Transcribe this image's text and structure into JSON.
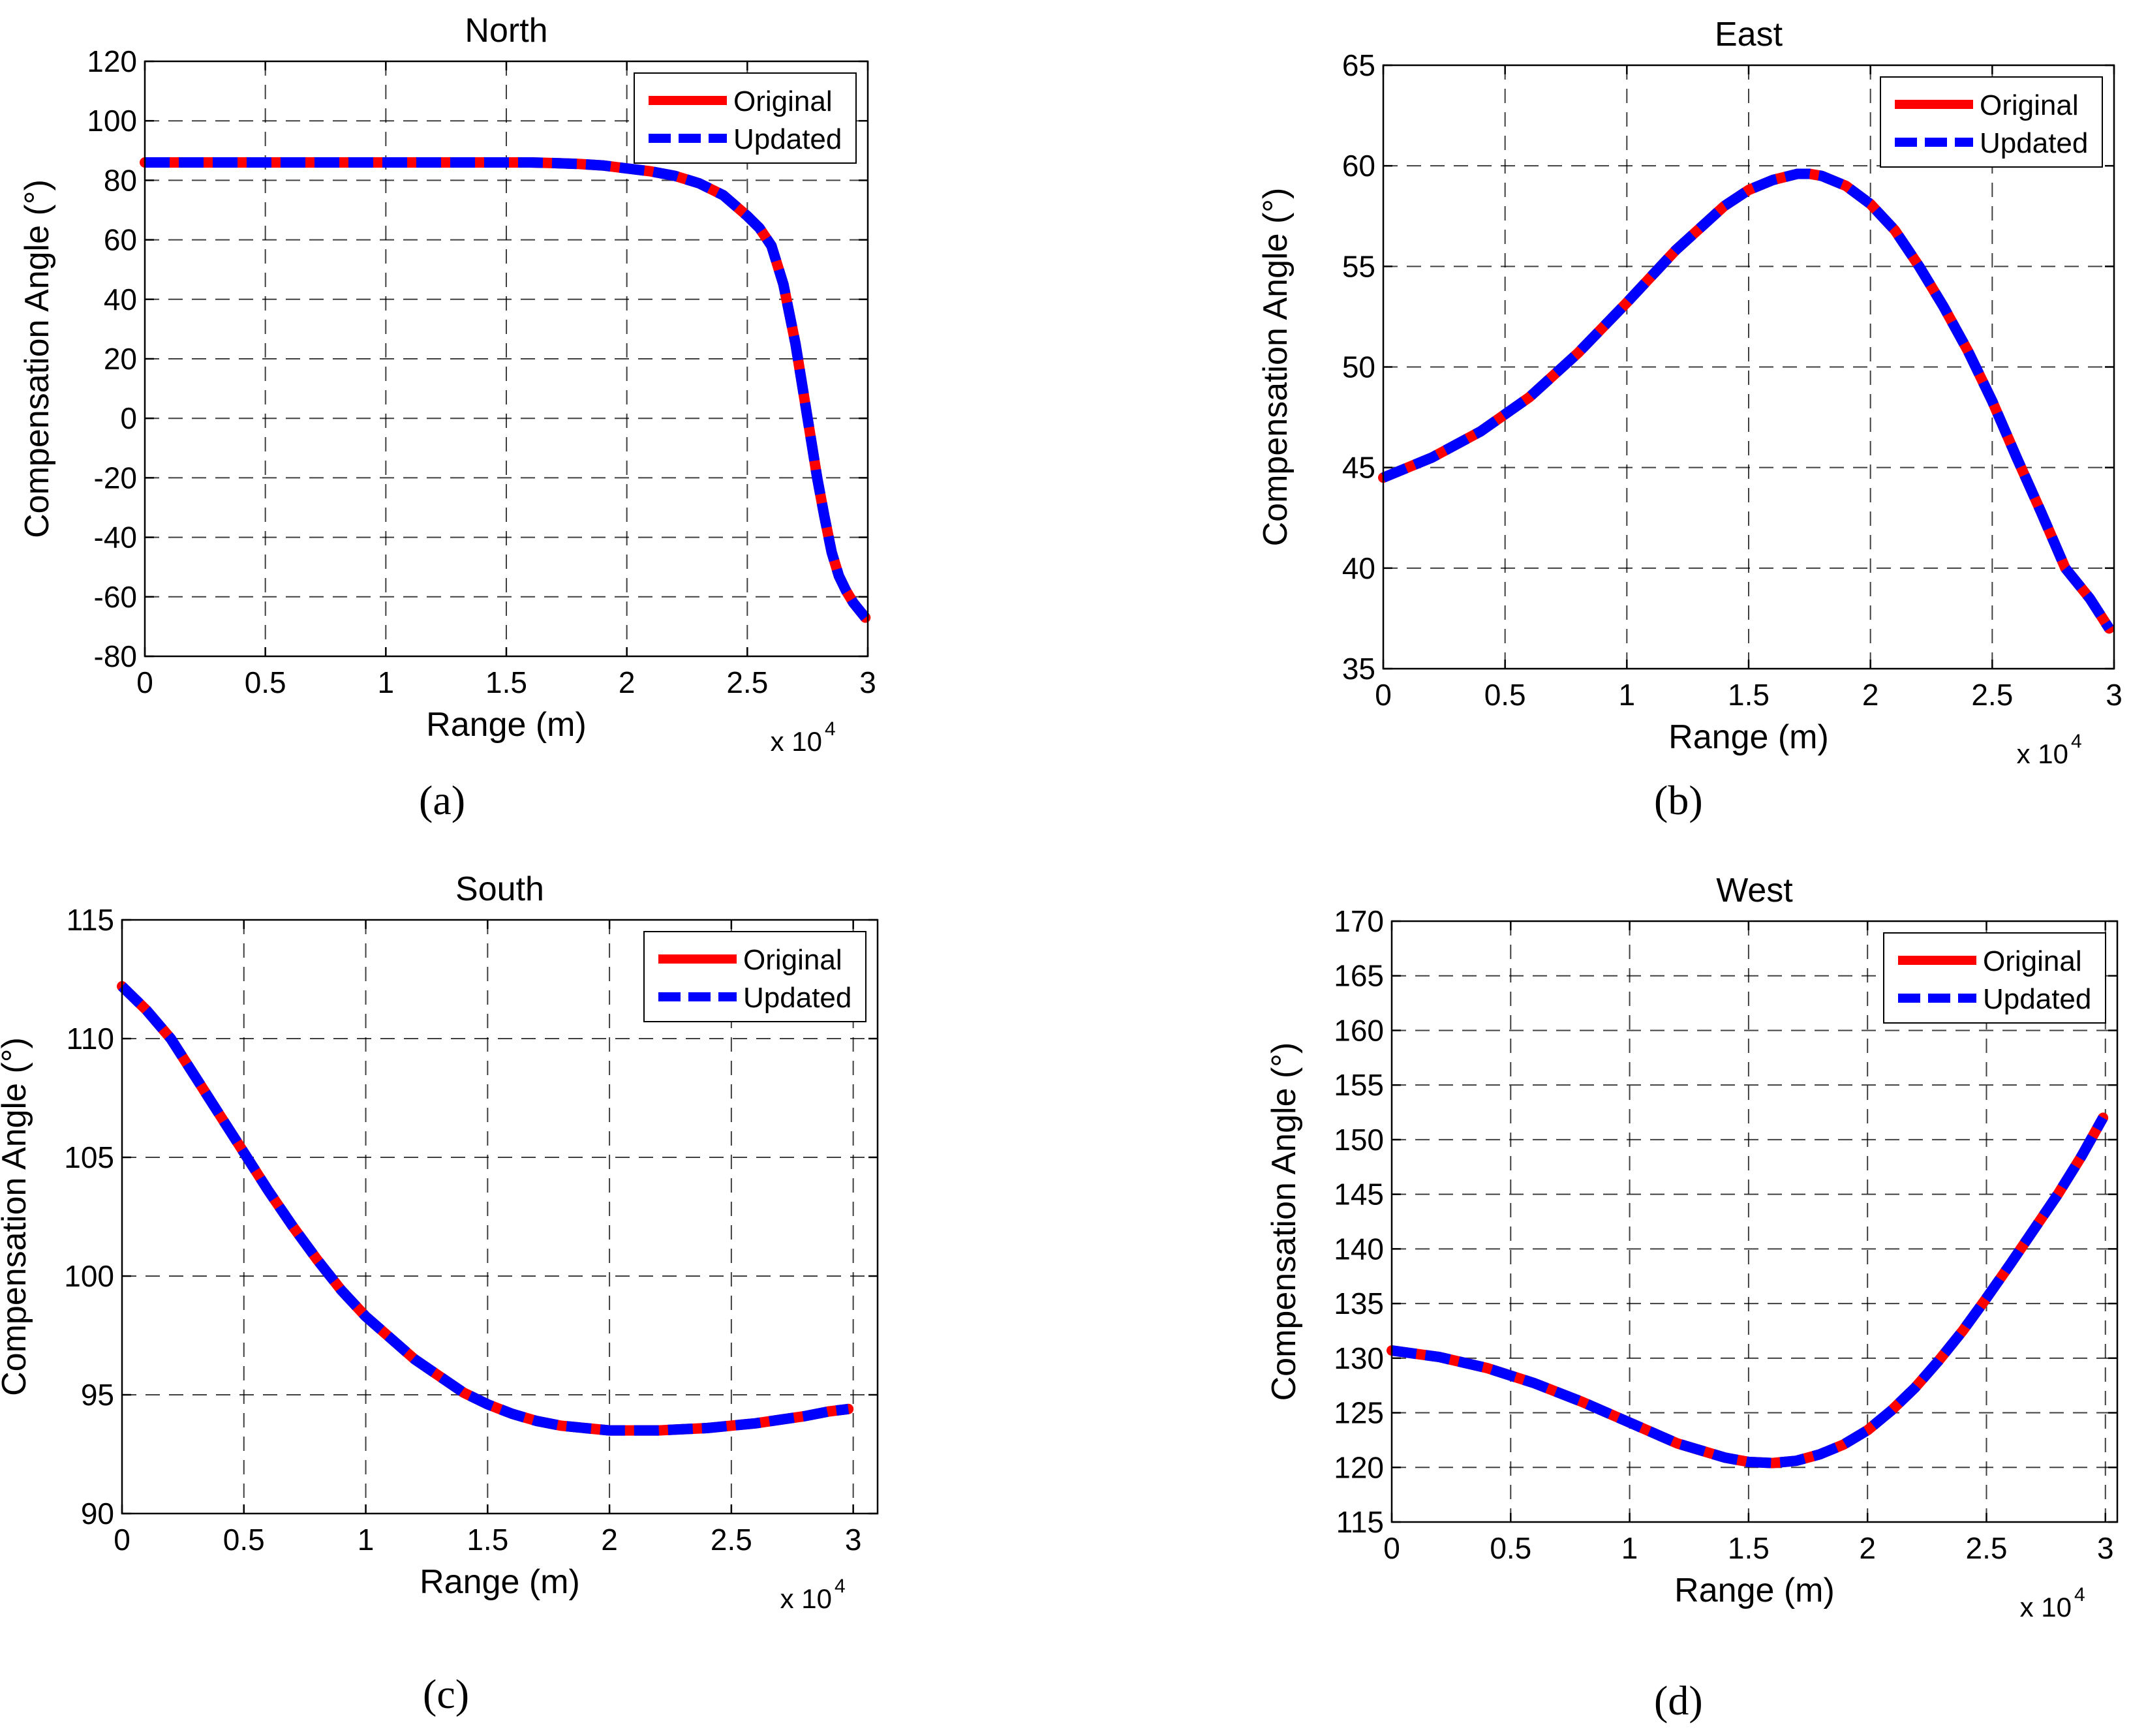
{
  "colors": {
    "original": "#ff0000",
    "updated": "#0000ff",
    "grid": "#000000",
    "axis": "#000000"
  },
  "captions": [
    "(a)",
    "(b)",
    "(c)",
    "(d)"
  ],
  "chart_data": [
    {
      "type": "line",
      "title": "North",
      "xlabel": "Range (m)",
      "ylabel": "Compensation Angle (°)",
      "x_multiplier": "x 10",
      "x_exponent": "4",
      "xlim": [
        0,
        30000
      ],
      "ylim": [
        -80,
        120
      ],
      "xticks": [
        0,
        5000,
        10000,
        15000,
        20000,
        25000,
        30000
      ],
      "xtick_labels": [
        "0",
        "0.5",
        "1",
        "1.5",
        "2",
        "2.5",
        "3"
      ],
      "yticks": [
        120,
        100,
        80,
        60,
        40,
        20,
        0,
        -20,
        -40,
        -60,
        -80
      ],
      "ytick_labels": [
        "120",
        "100",
        "80",
        "60",
        "40",
        "20",
        "0",
        "-20",
        "-40",
        "-60",
        "-80"
      ],
      "grid": true,
      "legend": "top-right",
      "x": [
        0,
        2000,
        4000,
        6000,
        8000,
        10000,
        12000,
        14000,
        16000,
        17000,
        18000,
        19000,
        20000,
        21000,
        22000,
        23000,
        24000,
        25000,
        25500,
        26000,
        26500,
        27000,
        27300,
        27600,
        27900,
        28200,
        28500,
        28800,
        29100,
        29400,
        29700,
        29900
      ],
      "series": [
        {
          "name": "Original",
          "values": [
            86,
            86,
            86,
            86,
            86,
            86,
            86,
            86,
            86,
            85.8,
            85.5,
            85,
            84,
            83,
            81.5,
            79,
            75,
            68,
            64,
            58,
            45,
            25,
            10,
            -5,
            -20,
            -33,
            -45,
            -53,
            -58,
            -62,
            -65,
            -67
          ]
        },
        {
          "name": "Updated",
          "values": [
            86,
            86,
            86,
            86,
            86,
            86,
            86,
            86,
            86,
            85.8,
            85.5,
            85,
            84,
            83,
            81.5,
            79,
            75,
            68,
            64,
            58,
            45,
            25,
            10,
            -5,
            -20,
            -33,
            -45,
            -53,
            -58,
            -62,
            -65,
            -67
          ]
        }
      ]
    },
    {
      "type": "line",
      "title": "East",
      "xlabel": "Range (m)",
      "ylabel": "Compensation Angle (°)",
      "x_multiplier": "x 10",
      "x_exponent": "4",
      "xlim": [
        0,
        30000
      ],
      "ylim": [
        35,
        65
      ],
      "xticks": [
        0,
        5000,
        10000,
        15000,
        20000,
        25000,
        30000
      ],
      "xtick_labels": [
        "0",
        "0.5",
        "1",
        "1.5",
        "2",
        "2.5",
        "3"
      ],
      "yticks": [
        65,
        60,
        55,
        50,
        45,
        40,
        35
      ],
      "ytick_labels": [
        "65",
        "60",
        "55",
        "50",
        "45",
        "40",
        "35"
      ],
      "grid": true,
      "legend": "top-right",
      "x": [
        0,
        2000,
        4000,
        6000,
        8000,
        10000,
        12000,
        14000,
        15000,
        16000,
        17000,
        17500,
        18000,
        19000,
        20000,
        21000,
        22000,
        23000,
        24000,
        25000,
        26000,
        27000,
        28000,
        29000,
        29800
      ],
      "series": [
        {
          "name": "Original",
          "values": [
            44.5,
            45.5,
            46.8,
            48.5,
            50.7,
            53.2,
            55.8,
            58,
            58.8,
            59.3,
            59.6,
            59.6,
            59.5,
            59,
            58.1,
            56.8,
            55,
            53,
            50.8,
            48.3,
            45.5,
            42.8,
            40,
            38.5,
            37
          ]
        },
        {
          "name": "Updated",
          "values": [
            44.5,
            45.5,
            46.8,
            48.5,
            50.7,
            53.2,
            55.8,
            58,
            58.8,
            59.3,
            59.6,
            59.6,
            59.5,
            59,
            58.1,
            56.8,
            55,
            53,
            50.8,
            48.3,
            45.5,
            42.8,
            40,
            38.5,
            37
          ]
        }
      ]
    },
    {
      "type": "line",
      "title": "South",
      "xlabel": "Range (m)",
      "ylabel": "Compensation Angle (°)",
      "x_multiplier": "x 10",
      "x_exponent": "4",
      "xlim": [
        0,
        31000
      ],
      "ylim": [
        90,
        115
      ],
      "xticks": [
        0,
        5000,
        10000,
        15000,
        20000,
        25000,
        30000
      ],
      "xtick_labels": [
        "0",
        "0.5",
        "1",
        "1.5",
        "2",
        "2.5",
        "3"
      ],
      "yticks": [
        115,
        110,
        105,
        100,
        95,
        90
      ],
      "ytick_labels": [
        "115",
        "110",
        "105",
        "100",
        "95",
        "90"
      ],
      "grid": true,
      "legend": "top-right",
      "x": [
        0,
        1000,
        2000,
        3000,
        4000,
        5000,
        6000,
        7000,
        8000,
        9000,
        10000,
        11000,
        12000,
        13000,
        14000,
        15000,
        16000,
        17000,
        18000,
        19000,
        20000,
        21000,
        22000,
        23000,
        24000,
        25000,
        26000,
        27000,
        28000,
        29000,
        29800
      ],
      "series": [
        {
          "name": "Original",
          "values": [
            112.2,
            111.2,
            110,
            108.4,
            106.8,
            105.2,
            103.6,
            102.1,
            100.7,
            99.4,
            98.3,
            97.4,
            96.5,
            95.8,
            95.1,
            94.6,
            94.2,
            93.9,
            93.7,
            93.6,
            93.5,
            93.5,
            93.5,
            93.55,
            93.6,
            93.7,
            93.8,
            93.95,
            94.1,
            94.3,
            94.4
          ]
        },
        {
          "name": "Updated",
          "values": [
            112.2,
            111.2,
            110,
            108.4,
            106.8,
            105.2,
            103.6,
            102.1,
            100.7,
            99.4,
            98.3,
            97.4,
            96.5,
            95.8,
            95.1,
            94.6,
            94.2,
            93.9,
            93.7,
            93.6,
            93.5,
            93.5,
            93.5,
            93.55,
            93.6,
            93.7,
            93.8,
            93.95,
            94.1,
            94.3,
            94.4
          ]
        }
      ]
    },
    {
      "type": "line",
      "title": "West",
      "xlabel": "Range (m)",
      "ylabel": "Compensation Angle (°)",
      "x_multiplier": "x 10",
      "x_exponent": "4",
      "xlim": [
        0,
        30500
      ],
      "ylim": [
        115,
        170
      ],
      "xticks": [
        0,
        5000,
        10000,
        15000,
        20000,
        25000,
        30000
      ],
      "xtick_labels": [
        "0",
        "0.5",
        "1",
        "1.5",
        "2",
        "2.5",
        "3"
      ],
      "yticks": [
        170,
        165,
        160,
        155,
        150,
        145,
        140,
        135,
        130,
        125,
        120,
        115
      ],
      "ytick_labels": [
        "170",
        "165",
        "160",
        "155",
        "150",
        "145",
        "140",
        "135",
        "130",
        "125",
        "120",
        "115"
      ],
      "grid": true,
      "legend": "top-right",
      "x": [
        0,
        2000,
        4000,
        6000,
        8000,
        10000,
        12000,
        14000,
        15000,
        16000,
        17000,
        18000,
        19000,
        20000,
        21000,
        22000,
        23000,
        24000,
        25000,
        26000,
        27000,
        28000,
        29000,
        29900
      ],
      "series": [
        {
          "name": "Original",
          "values": [
            130.7,
            130.1,
            129.1,
            127.7,
            126,
            124.1,
            122.2,
            120.9,
            120.5,
            120.4,
            120.6,
            121.2,
            122.1,
            123.4,
            125.2,
            127.3,
            129.8,
            132.5,
            135.5,
            138.6,
            141.8,
            145,
            148.5,
            152
          ]
        },
        {
          "name": "Updated",
          "values": [
            130.7,
            130.1,
            129.1,
            127.7,
            126,
            124.1,
            122.2,
            120.9,
            120.5,
            120.4,
            120.6,
            121.2,
            122.1,
            123.4,
            125.2,
            127.3,
            129.8,
            132.5,
            135.5,
            138.6,
            141.8,
            145,
            148.5,
            152
          ]
        }
      ]
    }
  ]
}
